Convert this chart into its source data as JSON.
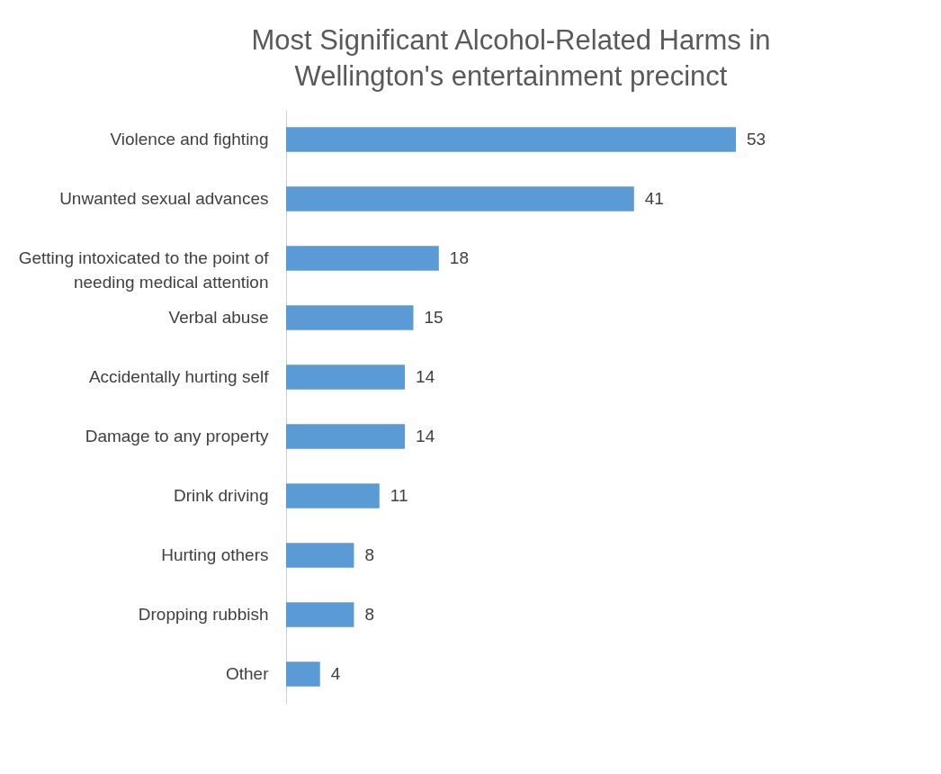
{
  "chart_data": {
    "type": "bar",
    "orientation": "horizontal",
    "title": "Most Significant Alcohol-Related Harms in Wellington's entertainment precinct",
    "categories": [
      "Violence and fighting",
      "Unwanted sexual advances",
      "Getting intoxicated to the point of needing medical attention",
      "Verbal abuse",
      "Accidentally hurting self",
      "Damage to any property",
      "Drink driving",
      "Hurting others",
      "Dropping rubbish",
      "Other"
    ],
    "values": [
      53,
      41,
      18,
      15,
      14,
      14,
      11,
      8,
      8,
      4
    ],
    "color": "#5b9bd5",
    "data_labels": true
  }
}
